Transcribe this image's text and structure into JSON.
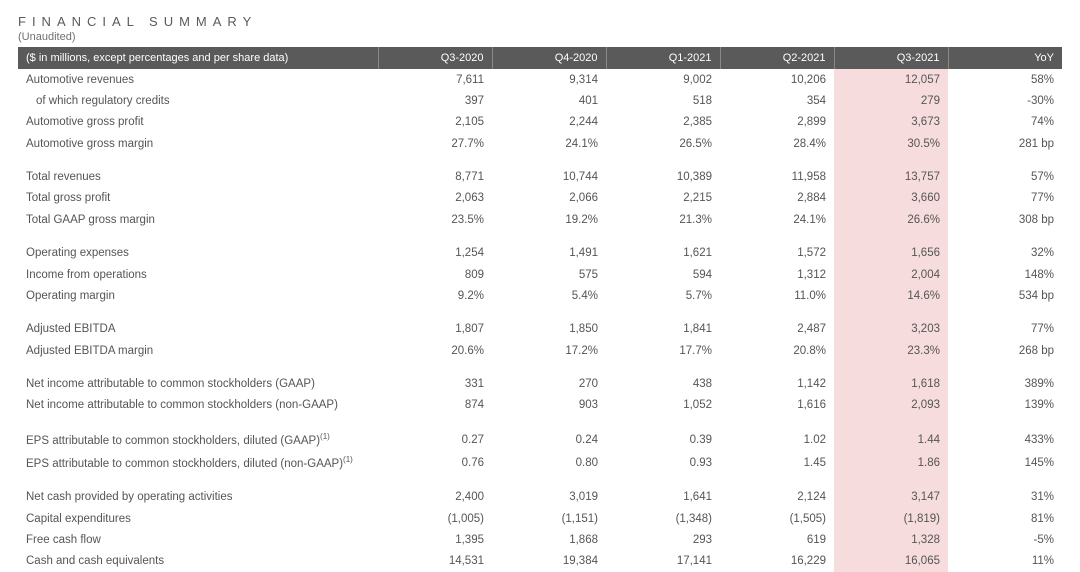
{
  "title": "FINANCIAL SUMMARY",
  "subtitle": "(Unaudited)",
  "header_bg": "#5a5a5a",
  "highlight_bg": "#f6dcdc",
  "columns": [
    "($ in millions, except percentages and per share data)",
    "Q3-2020",
    "Q4-2020",
    "Q1-2021",
    "Q2-2021",
    "Q3-2021",
    "YoY"
  ],
  "groups": [
    [
      {
        "label": "Automotive revenues",
        "cells": [
          "7,611",
          "9,314",
          "9,002",
          "10,206",
          "12,057",
          "58%"
        ]
      },
      {
        "label": "of which regulatory credits",
        "indent": true,
        "cells": [
          "397",
          "401",
          "518",
          "354",
          "279",
          "-30%"
        ]
      },
      {
        "label": "Automotive gross profit",
        "cells": [
          "2,105",
          "2,244",
          "2,385",
          "2,899",
          "3,673",
          "74%"
        ]
      },
      {
        "label": "Automotive gross margin",
        "cells": [
          "27.7%",
          "24.1%",
          "26.5%",
          "28.4%",
          "30.5%",
          "281 bp"
        ]
      }
    ],
    [
      {
        "label": "Total revenues",
        "cells": [
          "8,771",
          "10,744",
          "10,389",
          "11,958",
          "13,757",
          "57%"
        ]
      },
      {
        "label": "Total gross profit",
        "cells": [
          "2,063",
          "2,066",
          "2,215",
          "2,884",
          "3,660",
          "77%"
        ]
      },
      {
        "label": "Total GAAP gross margin",
        "cells": [
          "23.5%",
          "19.2%",
          "21.3%",
          "24.1%",
          "26.6%",
          "308 bp"
        ]
      }
    ],
    [
      {
        "label": "Operating expenses",
        "cells": [
          "1,254",
          "1,491",
          "1,621",
          "1,572",
          "1,656",
          "32%"
        ]
      },
      {
        "label": "Income from operations",
        "cells": [
          "809",
          "575",
          "594",
          "1,312",
          "2,004",
          "148%"
        ]
      },
      {
        "label": "Operating margin",
        "cells": [
          "9.2%",
          "5.4%",
          "5.7%",
          "11.0%",
          "14.6%",
          "534 bp"
        ]
      }
    ],
    [
      {
        "label": "Adjusted EBITDA",
        "cells": [
          "1,807",
          "1,850",
          "1,841",
          "2,487",
          "3,203",
          "77%"
        ]
      },
      {
        "label": "Adjusted EBITDA margin",
        "cells": [
          "20.6%",
          "17.2%",
          "17.7%",
          "20.8%",
          "23.3%",
          "268 bp"
        ]
      }
    ],
    [
      {
        "label": "Net income attributable to common stockholders (GAAP)",
        "cells": [
          "331",
          "270",
          "438",
          "1,142",
          "1,618",
          "389%"
        ]
      },
      {
        "label": "Net income attributable to common stockholders (non-GAAP)",
        "cells": [
          "874",
          "903",
          "1,052",
          "1,616",
          "2,093",
          "139%"
        ]
      }
    ],
    [
      {
        "label": "EPS attributable to common stockholders, diluted (GAAP)",
        "sup": "(1)",
        "cells": [
          "0.27",
          "0.24",
          "0.39",
          "1.02",
          "1.44",
          "433%"
        ]
      },
      {
        "label": "EPS attributable to common stockholders, diluted (non-GAAP)",
        "sup": "(1)",
        "cells": [
          "0.76",
          "0.80",
          "0.93",
          "1.45",
          "1.86",
          "145%"
        ]
      }
    ],
    [
      {
        "label": "Net cash provided by operating activities",
        "cells": [
          "2,400",
          "3,019",
          "1,641",
          "2,124",
          "3,147",
          "31%"
        ]
      },
      {
        "label": "Capital expenditures",
        "cells": [
          "(1,005)",
          "(1,151)",
          "(1,348)",
          "(1,505)",
          "(1,819)",
          "81%"
        ]
      },
      {
        "label": "Free cash flow",
        "cells": [
          "1,395",
          "1,868",
          "293",
          "619",
          "1,328",
          "-5%"
        ]
      },
      {
        "label": "Cash and cash equivalents",
        "cells": [
          "14,531",
          "19,384",
          "17,141",
          "16,229",
          "16,065",
          "11%"
        ]
      }
    ]
  ],
  "highlight_col_index": 4
}
